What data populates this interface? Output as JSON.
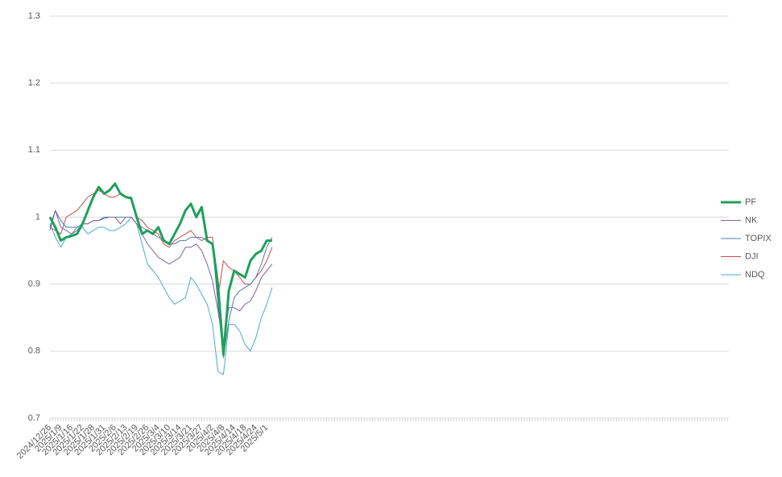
{
  "chart_data": {
    "type": "line",
    "categories": [
      "2024/12/26",
      null,
      "2025/1/9",
      null,
      "2025/1/16",
      null,
      "2025/1/22",
      null,
      "2025/1/28",
      null,
      "2025/1/31",
      null,
      "2025/2/6",
      null,
      "2025/2/13",
      null,
      "2025/2/19",
      null,
      "2025/2/26",
      null,
      "2025/3/4",
      null,
      "2025/3/10",
      null,
      "2025/3/14",
      null,
      "2025/3/21",
      null,
      "2025/3/27",
      null,
      "2025/4/2",
      null,
      "2025/4/8",
      null,
      "2025/4/14",
      null,
      "2025/4/18",
      null,
      "2025/4/24",
      null,
      "2025/5/1",
      null
    ],
    "series": [
      {
        "name": "PF",
        "color": "#1fa05a",
        "values": [
          1.0,
          0.985,
          0.965,
          0.97,
          0.972,
          0.975,
          0.99,
          1.01,
          1.03,
          1.045,
          1.035,
          1.04,
          1.05,
          1.035,
          1.03,
          1.028,
          1.0,
          0.975,
          0.98,
          0.975,
          0.985,
          0.965,
          0.96,
          0.975,
          0.99,
          1.01,
          1.02,
          1.0,
          1.015,
          0.965,
          0.96,
          0.9,
          0.795,
          0.89,
          0.92,
          0.915,
          0.91,
          0.935,
          0.945,
          0.95,
          0.965,
          0.965
        ]
      },
      {
        "name": "NK",
        "color": "#8064a2",
        "values": [
          0.985,
          1.01,
          0.985,
          0.98,
          0.975,
          0.98,
          0.99,
          0.99,
          0.995,
          0.995,
          0.998,
          1.0,
          1.0,
          0.99,
          1.0,
          1.0,
          0.99,
          0.975,
          0.96,
          0.95,
          0.94,
          0.935,
          0.93,
          0.935,
          0.94,
          0.955,
          0.955,
          0.96,
          0.95,
          0.93,
          0.905,
          0.86,
          0.81,
          0.865,
          0.865,
          0.86,
          0.87,
          0.875,
          0.89,
          0.91,
          0.92,
          0.93
        ]
      },
      {
        "name": "TOPIX",
        "color": "#4a7ea8",
        "values": [
          0.98,
          1.01,
          0.995,
          0.985,
          0.985,
          0.985,
          0.99,
          0.99,
          0.995,
          0.995,
          1.0,
          1.0,
          1.0,
          1.0,
          1.0,
          1.0,
          0.99,
          0.985,
          0.98,
          0.975,
          0.97,
          0.965,
          0.96,
          0.96,
          0.965,
          0.965,
          0.97,
          0.97,
          0.97,
          0.965,
          0.96,
          0.87,
          0.79,
          0.845,
          0.88,
          0.89,
          0.895,
          0.9,
          0.91,
          0.93,
          0.955,
          0.97
        ]
      },
      {
        "name": "DJI",
        "color": "#c0504d",
        "values": [
          0.985,
          0.98,
          0.975,
          1.0,
          1.005,
          1.01,
          1.02,
          1.03,
          1.035,
          1.04,
          1.035,
          1.03,
          1.03,
          1.035,
          1.03,
          1.03,
          1.0,
          0.995,
          0.985,
          0.98,
          0.975,
          0.96,
          0.955,
          0.965,
          0.97,
          0.975,
          0.98,
          0.97,
          0.965,
          0.97,
          0.97,
          0.88,
          0.935,
          0.925,
          0.92,
          0.91,
          0.9,
          0.9,
          0.91,
          0.92,
          0.935,
          0.955
        ]
      },
      {
        "name": "NDQ",
        "color": "#4bacc6",
        "values": [
          0.99,
          0.97,
          0.955,
          0.97,
          0.975,
          0.985,
          0.985,
          0.975,
          0.98,
          0.985,
          0.985,
          0.98,
          0.98,
          0.985,
          0.99,
          1.0,
          0.99,
          0.96,
          0.93,
          0.92,
          0.91,
          0.895,
          0.88,
          0.87,
          0.875,
          0.88,
          0.91,
          0.9,
          0.885,
          0.87,
          0.84,
          0.77,
          0.765,
          0.84,
          0.84,
          0.83,
          0.81,
          0.8,
          0.82,
          0.85,
          0.87,
          0.895
        ]
      }
    ],
    "ylim": [
      0.7,
      1.3
    ],
    "yticks": [
      0.7,
      0.8,
      0.9,
      1,
      1.1,
      1.2,
      1.3
    ],
    "grid": true,
    "legend": "right"
  }
}
